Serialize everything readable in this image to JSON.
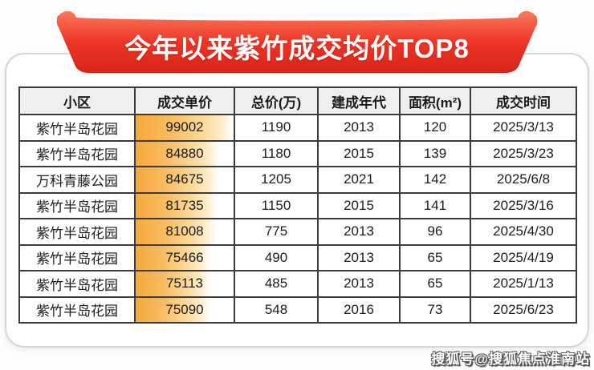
{
  "banner": {
    "title": "今年以来紫竹成交均价TOP8"
  },
  "watermark": "搜狐号@搜狐焦点淮南站",
  "colors": {
    "ribbon_top": "#f97a5c",
    "ribbon_mid": "#ee3526",
    "ribbon_bottom": "#d6241a",
    "ribbon_fold": "#a31309",
    "databar_orange": "#f6a93c",
    "header_bg": "#efefef",
    "table_border": "#3b3b3b"
  },
  "chart_data": {
    "type": "table",
    "title": "今年以来紫竹成交均价TOP8",
    "columns": [
      "小区",
      "成交单价",
      "总价(万)",
      "建成年代",
      "面积(m²)",
      "成交时间"
    ],
    "rows": [
      [
        "紫竹半岛花园",
        99002,
        1190,
        2013,
        120,
        "2025/3/13"
      ],
      [
        "紫竹半岛花园",
        84880,
        1180,
        2015,
        139,
        "2025/3/23"
      ],
      [
        "万科青藤公园",
        84675,
        1205,
        2021,
        142,
        "2025/6/8"
      ],
      [
        "紫竹半岛花园",
        81735,
        1150,
        2015,
        141,
        "2025/3/16"
      ],
      [
        "紫竹半岛花园",
        81008,
        775,
        2013,
        96,
        "2025/4/30"
      ],
      [
        "紫竹半岛花园",
        75466,
        490,
        2013,
        65,
        "2025/4/19"
      ],
      [
        "紫竹半岛花园",
        75113,
        485,
        2013,
        65,
        "2025/1/13"
      ],
      [
        "紫竹半岛花园",
        75090,
        548,
        2016,
        73,
        "2025/6/23"
      ]
    ],
    "layout_hints": {
      "unit_price_databar": "orange gradient bar, width proportional to value relative to max",
      "grid": true,
      "header_style": "gray background, bold"
    }
  }
}
